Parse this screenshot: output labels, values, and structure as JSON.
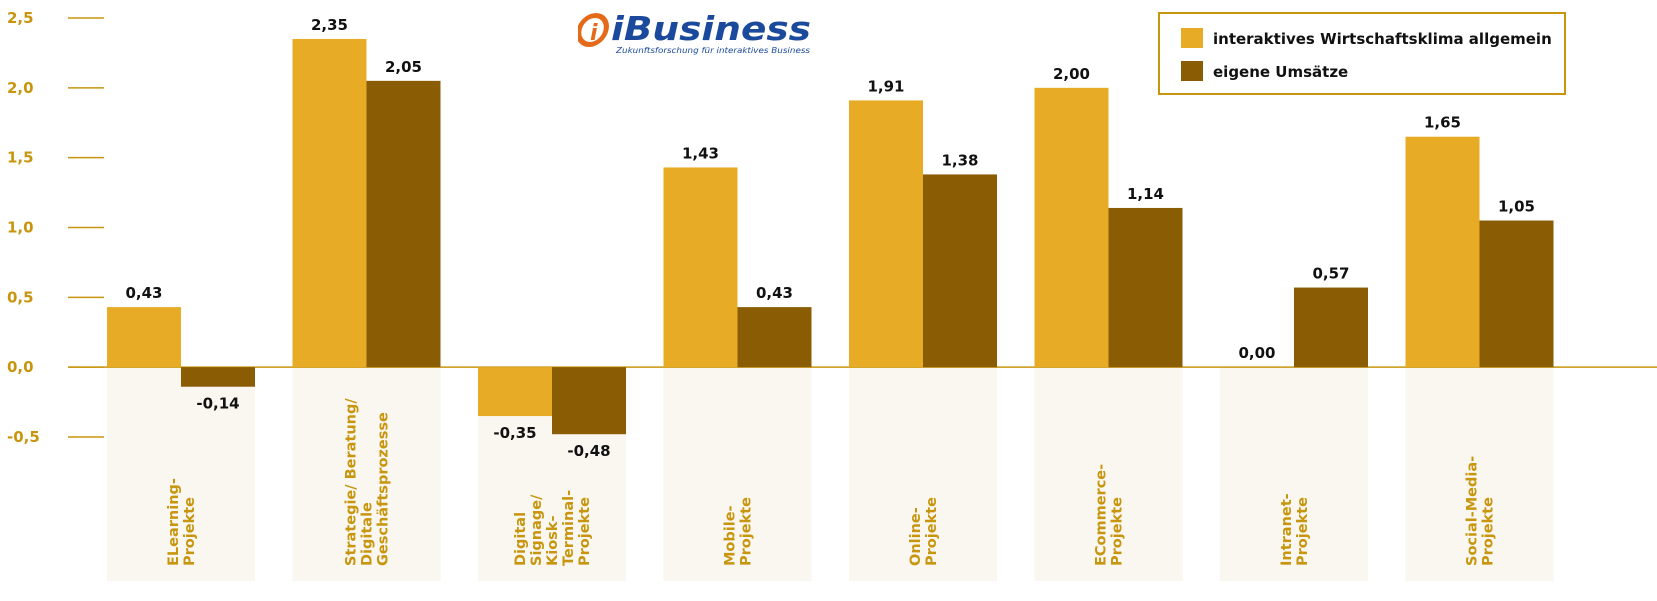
{
  "chart_data": {
    "type": "bar",
    "categories": [
      "ELearning-Projekte",
      "Strategie/ Beratung/ Digitale Geschäftsprozesse",
      "Digital Signage/ Kiosk-Terminal-Projekte",
      "Mobile-Projekte",
      "Online-Projekte",
      "ECommerce-Projekte",
      "Intranet-Projekte",
      "Social-Media-Projekte"
    ],
    "category_lines": [
      [
        "ELearning-",
        "Projekte"
      ],
      [
        "Strategie/ Beratung/",
        "Digitale",
        "Geschäftsprozesse"
      ],
      [
        "Digital",
        "Signage/",
        "Kiosk-",
        "Terminal-",
        "Projekte"
      ],
      [
        "Mobile-",
        "Projekte"
      ],
      [
        "Online-",
        "Projekte"
      ],
      [
        "ECommerce-",
        "Projekte"
      ],
      [
        "Intranet-",
        "Projekte"
      ],
      [
        "Social-Media-",
        "Projekte"
      ]
    ],
    "series": [
      {
        "name": "interaktives Wirtschaftsklima allgemein",
        "color": "#e8ab25",
        "values": [
          0.43,
          2.35,
          -0.35,
          1.43,
          1.91,
          2.0,
          0.0,
          1.65
        ],
        "labels": [
          "0,43",
          "2,35",
          "-0,35",
          "1,43",
          "1,91",
          "2,00",
          "0,00",
          "1,65"
        ]
      },
      {
        "name": "eigene Umsätze",
        "color": "#8a5c04",
        "values": [
          -0.14,
          2.05,
          -0.48,
          0.43,
          1.38,
          1.14,
          0.57,
          1.05
        ],
        "labels": [
          "-0,14",
          "2,05",
          "-0,48",
          "0,43",
          "1,38",
          "1,14",
          "0,57",
          "1,05"
        ]
      }
    ],
    "ylim": [
      -0.5,
      2.5
    ],
    "yticks": [
      2.5,
      2.0,
      1.5,
      1.0,
      0.5,
      0.0,
      -0.5
    ],
    "ytick_labels": [
      "2,5",
      "2,0",
      "1,5",
      "1,0",
      "0,5",
      "0,0",
      "-0,5"
    ],
    "grid": false,
    "legend_position": "top-right",
    "title": "",
    "xlabel": "",
    "ylabel": ""
  },
  "logo": {
    "name": "iBusiness",
    "tagline": "Zukunftsforschung für interaktives Business"
  },
  "colors": {
    "axis": "#c8960e",
    "band": "#faf6f0",
    "legend_border": "#c8960e"
  }
}
